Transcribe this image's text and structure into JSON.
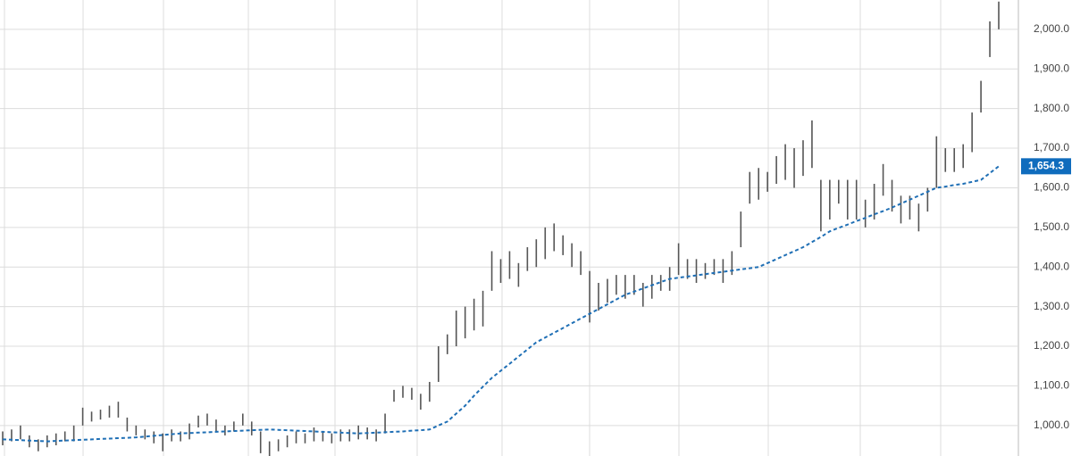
{
  "chart_data": {
    "type": "ohlc",
    "ylim": [
      923,
      2074
    ],
    "yticks": [
      {
        "value": 1000,
        "label": "1,000.0"
      },
      {
        "value": 1100,
        "label": "1,100.0"
      },
      {
        "value": 1200,
        "label": "1,200.0"
      },
      {
        "value": 1300,
        "label": "1,300.0"
      },
      {
        "value": 1400,
        "label": "1,400.0"
      },
      {
        "value": 1500,
        "label": "1,500.0"
      },
      {
        "value": 1600,
        "label": "1,600.0"
      },
      {
        "value": 1700,
        "label": "1,700.0"
      },
      {
        "value": 1800,
        "label": "1,800.0"
      },
      {
        "value": 1900,
        "label": "1,900.0"
      },
      {
        "value": 2000,
        "label": "2,000.0"
      }
    ],
    "grid": true,
    "bars": {
      "color": "#555555",
      "high": [
        985,
        990,
        1000,
        975,
        965,
        975,
        980,
        985,
        1000,
        1045,
        1035,
        1040,
        1050,
        1060,
        1020,
        1000,
        990,
        985,
        980,
        990,
        985,
        1005,
        1025,
        1030,
        1015,
        1000,
        1010,
        1030,
        1010,
        985,
        960,
        965,
        975,
        985,
        980,
        995,
        985,
        980,
        990,
        990,
        1000,
        995,
        990,
        1030,
        1090,
        1100,
        1095,
        1080,
        1110,
        1200,
        1230,
        1290,
        1300,
        1320,
        1340,
        1440,
        1420,
        1440,
        1410,
        1450,
        1470,
        1500,
        1510,
        1480,
        1460,
        1440,
        1390,
        1360,
        1370,
        1380,
        1380,
        1380,
        1360,
        1380,
        1380,
        1400,
        1460,
        1420,
        1420,
        1410,
        1420,
        1420,
        1440,
        1540,
        1640,
        1650,
        1640,
        1680,
        1710,
        1700,
        1720,
        1770,
        1620,
        1620,
        1620,
        1620,
        1620,
        1570,
        1610,
        1660,
        1620,
        1580,
        1580,
        1560,
        1600,
        1730,
        1700,
        1700,
        1710,
        1790,
        1870,
        2020,
        2070
      ],
      "low": [
        950,
        960,
        965,
        945,
        935,
        945,
        950,
        960,
        960,
        1000,
        1010,
        1015,
        1020,
        1020,
        985,
        975,
        965,
        955,
        935,
        960,
        960,
        965,
        995,
        1000,
        985,
        975,
        985,
        1000,
        975,
        930,
        920,
        935,
        945,
        955,
        955,
        960,
        960,
        955,
        960,
        960,
        965,
        965,
        960,
        980,
        1060,
        1070,
        1065,
        1040,
        1060,
        1110,
        1180,
        1200,
        1220,
        1240,
        1250,
        1340,
        1360,
        1370,
        1350,
        1390,
        1400,
        1420,
        1440,
        1430,
        1400,
        1380,
        1260,
        1290,
        1310,
        1330,
        1320,
        1330,
        1300,
        1320,
        1340,
        1340,
        1380,
        1370,
        1360,
        1370,
        1380,
        1360,
        1380,
        1450,
        1560,
        1570,
        1590,
        1610,
        1620,
        1600,
        1630,
        1650,
        1490,
        1520,
        1560,
        1520,
        1520,
        1500,
        1520,
        1580,
        1540,
        1510,
        1520,
        1490,
        1540,
        1600,
        1640,
        1640,
        1650,
        1690,
        1790,
        1930,
        2000
      ]
    },
    "moving_average": {
      "color": "#1f6fb5",
      "values": [
        965,
        964,
        963,
        962,
        961,
        960,
        961,
        962,
        963,
        964,
        965,
        966,
        967,
        968,
        969,
        970,
        972,
        974,
        976,
        978,
        980,
        981,
        982,
        983,
        984,
        985,
        986,
        987,
        988,
        989,
        990,
        989,
        988,
        987,
        986,
        985,
        984,
        983,
        982,
        981,
        980,
        981,
        982,
        983,
        984,
        985,
        987,
        988,
        990,
        1000,
        1010,
        1030,
        1050,
        1075,
        1098,
        1120,
        1138,
        1156,
        1174,
        1192,
        1210,
        1222,
        1234,
        1246,
        1258,
        1270,
        1282,
        1294,
        1306,
        1318,
        1330,
        1338,
        1346,
        1354,
        1362,
        1370,
        1373,
        1376,
        1379,
        1382,
        1385,
        1388,
        1391,
        1394,
        1397,
        1400,
        1410,
        1420,
        1430,
        1440,
        1450,
        1463,
        1476,
        1490,
        1499,
        1507,
        1516,
        1524,
        1533,
        1541,
        1550,
        1560,
        1570,
        1580,
        1590,
        1600,
        1603,
        1607,
        1610,
        1615,
        1620,
        1637,
        1654.3
      ]
    },
    "current_value": {
      "value": 1654.3,
      "label": "1,654.3",
      "color": "#0f6cbd"
    }
  }
}
